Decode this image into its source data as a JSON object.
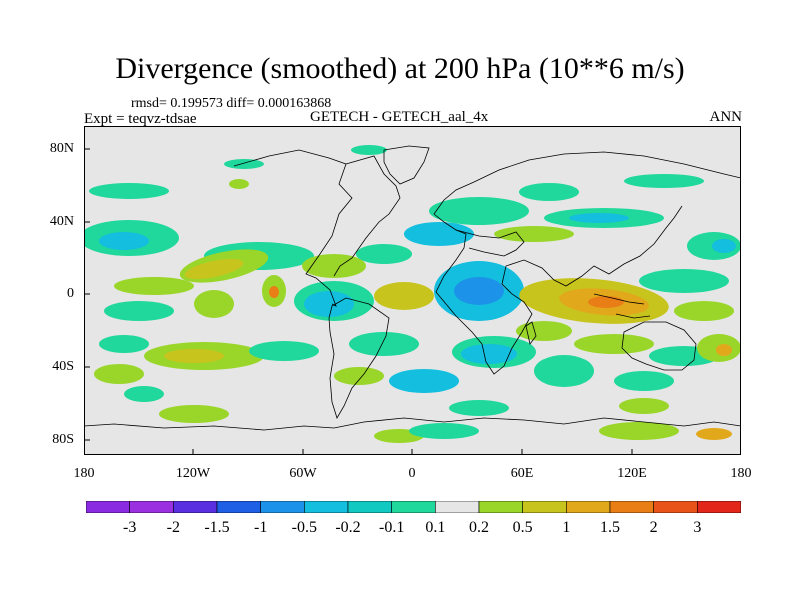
{
  "title": "Divergence (smoothed) at 200 hPa (10**6 m/s)",
  "stats": "rmsd= 0.199573 diff= 0.000163868",
  "left_label": "Expt = teqvz-tdsae",
  "center_label": "GETECH - GETECH_aal_4x",
  "right_label": "ANN",
  "y_ticks": [
    "80N",
    "40N",
    "0",
    "40S",
    "80S"
  ],
  "x_ticks": [
    "180",
    "120W",
    "60W",
    "0",
    "60E",
    "120E",
    "180"
  ],
  "colorbar": {
    "labels": [
      "-3",
      "-2",
      "-1.5",
      "-1",
      "-0.5",
      "-0.2",
      "-0.1",
      "0.1",
      "0.2",
      "0.5",
      "1",
      "1.5",
      "2",
      "3"
    ],
    "colors": [
      "#9b30e0",
      "#5a2fe0",
      "#1e5fe6",
      "#1c93e8",
      "#13bede",
      "#11c9c0",
      "#20d89b",
      "#e6e6e6",
      "#9ad62a",
      "#c8c41e",
      "#e2a81c",
      "#e97e16",
      "#e8531a",
      "#e2261a"
    ]
  },
  "palette": {
    "background": "#e6e6e6",
    "neg_strong": "#1c93e8",
    "neg": "#13bede",
    "neg_weak": "#20d89b",
    "pos_weak": "#9ad62a",
    "pos": "#c8c41e",
    "pos_mid": "#e2a81c",
    "pos_strong": "#e97e16"
  }
}
